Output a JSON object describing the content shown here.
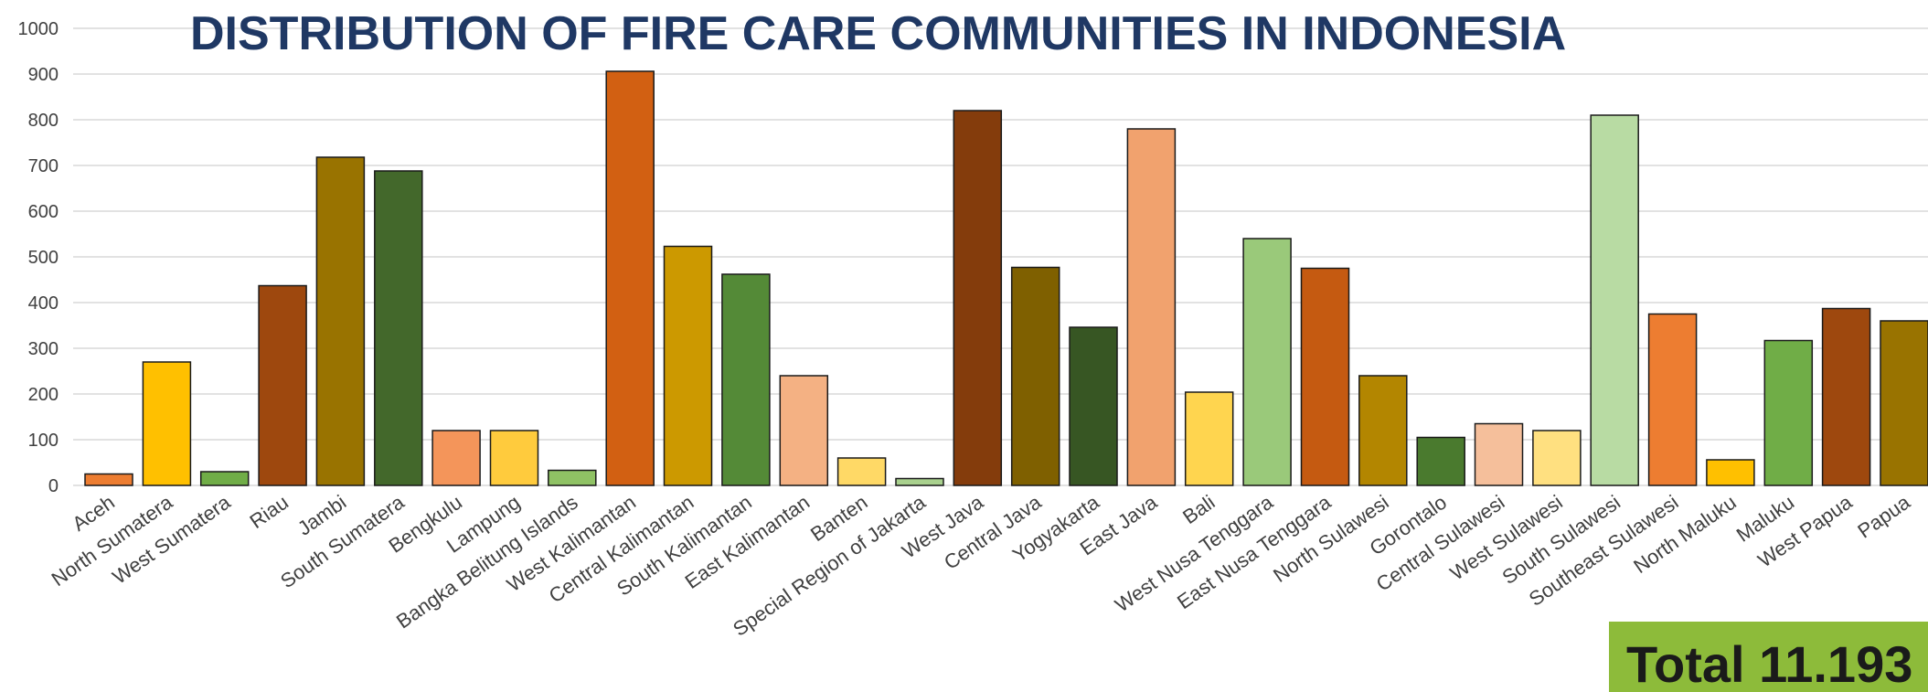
{
  "chart_data": {
    "type": "bar",
    "title": "DISTRIBUTION OF FIRE CARE COMMUNITIES IN INDONESIA",
    "xlabel": "",
    "ylabel": "",
    "ylim": [
      0,
      1000
    ],
    "yticks": [
      0,
      100,
      200,
      300,
      400,
      500,
      600,
      700,
      800,
      900,
      1000
    ],
    "grid": true,
    "categories": [
      "Aceh",
      "North Sumatera",
      "West Sumatera",
      "Riau",
      "Jambi",
      "South Sumatera",
      "Bengkulu",
      "Lampung",
      "Bangka Belitung Islands",
      "West Kalimantan",
      "Central Kalimantan",
      "South Kalimantan",
      "East Kalimantan",
      "Banten",
      "Special Region of Jakarta",
      "West Java",
      "Central Java",
      "Yogyakarta",
      "East Java",
      "Bali",
      "West Nusa Tenggara",
      "East Nusa Tenggara",
      "North Sulawesi",
      "Gorontalo",
      "Central Sulawesi",
      "West Sulawesi",
      "South Sulawesi",
      "Southeast Sulawesi",
      "North Maluku",
      "Maluku",
      "West Papua",
      "Papua"
    ],
    "values": [
      25,
      270,
      30,
      437,
      718,
      688,
      120,
      120,
      33,
      906,
      523,
      462,
      240,
      60,
      15,
      820,
      477,
      346,
      780,
      204,
      540,
      475,
      240,
      105,
      135,
      120,
      810,
      375,
      56,
      317,
      387,
      360
    ],
    "colors": [
      "#ed7d31",
      "#ffc000",
      "#70ad47",
      "#9e480e",
      "#997300",
      "#43682b",
      "#f4955a",
      "#ffcb3d",
      "#8fc264",
      "#d26012",
      "#cc9900",
      "#548a37",
      "#f4b183",
      "#ffd966",
      "#a9d18e",
      "#843c0c",
      "#7f6000",
      "#375623",
      "#f1a26e",
      "#ffd54f",
      "#9ac97a",
      "#c55a11",
      "#b38600",
      "#4a7a2e",
      "#f5bf9b",
      "#ffe080",
      "#b8dba3",
      "#ed7d31",
      "#ffc000",
      "#70ad47",
      "#9e480e",
      "#997300"
    ],
    "annotation": "Total 11.193"
  },
  "styles": {
    "title_color": "#1f3864",
    "grid_color": "#d9d9d9",
    "total_box_color": "#8dbb3a",
    "bar_stroke": "#1a1a1a"
  }
}
